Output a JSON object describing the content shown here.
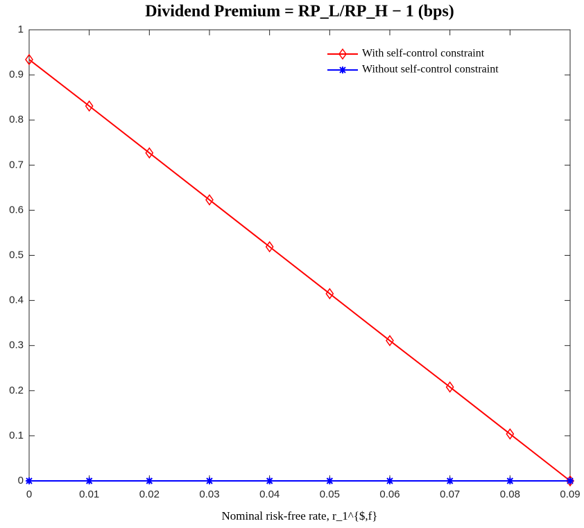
{
  "chart_data": {
    "type": "line",
    "title": "Dividend Premium = RP_L/RP_H − 1 (bps)",
    "x_label": "Nominal risk-free rate, r_1^{$,f}",
    "x": [
      0,
      0.01,
      0.02,
      0.03,
      0.04,
      0.05,
      0.06,
      0.07,
      0.08,
      0.09
    ],
    "series": [
      {
        "name": "With self-control constraint",
        "color": "#ff0000",
        "marker": "diamond",
        "values": [
          0.934,
          0.831,
          0.727,
          0.623,
          0.519,
          0.415,
          0.311,
          0.208,
          0.104,
          0.0
        ]
      },
      {
        "name": "Without self-control constraint",
        "color": "#0000ff",
        "marker": "asterisk",
        "values": [
          0,
          0,
          0,
          0,
          0,
          0,
          0,
          0,
          0,
          0
        ]
      }
    ],
    "xlim": [
      0,
      0.09
    ],
    "xticks": [
      0,
      0.01,
      0.02,
      0.03,
      0.04,
      0.05,
      0.06,
      0.07,
      0.08,
      0.09
    ],
    "ylim": [
      0,
      1
    ],
    "yticks": [
      0,
      0.1,
      0.2,
      0.3,
      0.4,
      0.5,
      0.6,
      0.7,
      0.8,
      0.9,
      1
    ],
    "legend": "top-right",
    "grid": false
  }
}
